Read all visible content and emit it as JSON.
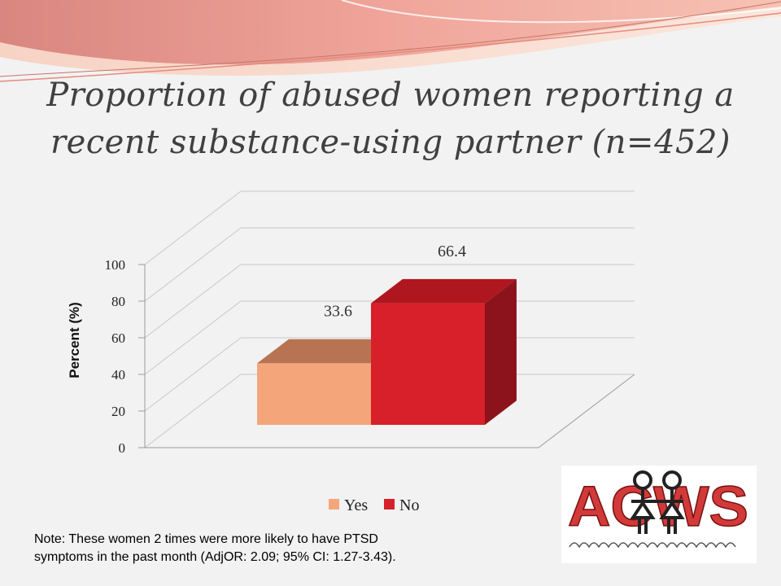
{
  "slide": {
    "title": "Proportion of abused women reporting a recent substance-using partner (n=452)",
    "note_line1": "Note: These women 2 times were more likely to have PTSD",
    "note_line2": "symptoms in the past month (AdjOR: 2.09; 95% CI: 1.27-3.43).",
    "logo_text": "ACWS",
    "logo_icon": "two-figures-holding-hands-icon"
  },
  "colors": {
    "background": "#f2f2f2",
    "yes_front": "#f4a67a",
    "yes_top": "#b87452",
    "no_front": "#d8202a",
    "no_side": "#8c131b",
    "no_top": "#b0161f",
    "header_wave": "#e8837a"
  },
  "chart_data": {
    "type": "bar",
    "categories": [
      ""
    ],
    "series": [
      {
        "name": "Yes",
        "values": [
          33.6
        ]
      },
      {
        "name": "No",
        "values": [
          66.4
        ]
      }
    ],
    "data_labels": [
      "33.6",
      "66.4"
    ],
    "ylabel": "Percent (%)",
    "ylim": [
      0,
      100
    ],
    "yticks": [
      "0",
      "20",
      "40",
      "60",
      "80",
      "100"
    ],
    "grid": true,
    "legend": "bottom",
    "style": "3d-clustered"
  }
}
